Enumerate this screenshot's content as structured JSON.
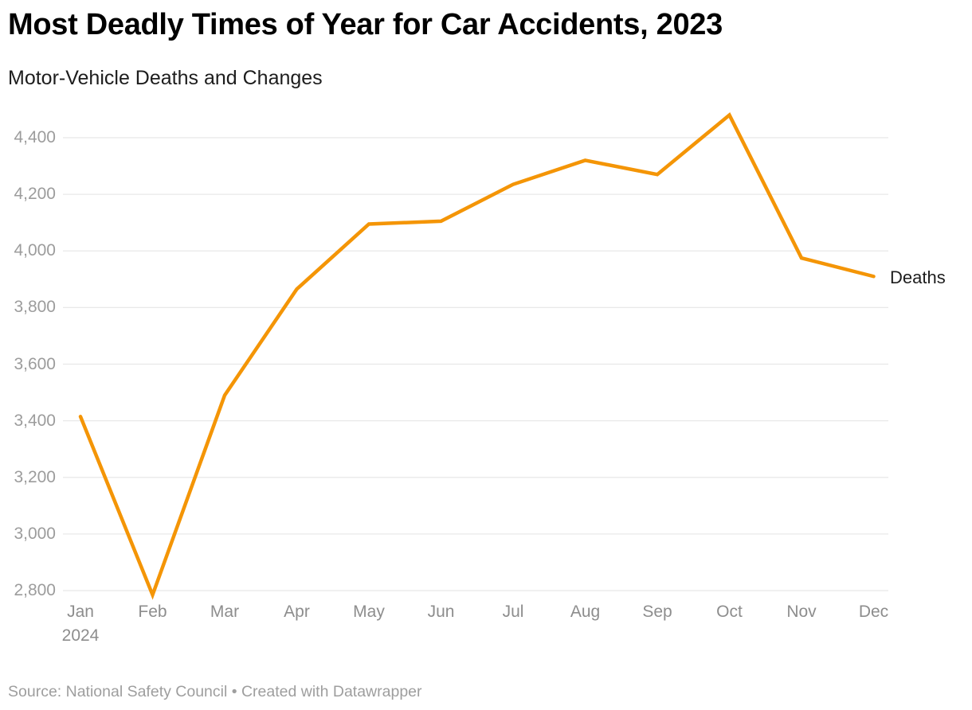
{
  "header": {
    "title": "Most Deadly Times of Year for Car Accidents, 2023",
    "subtitle": "Motor-Vehicle Deaths and Changes"
  },
  "footer": {
    "source": "Source: National Safety Council • Created with Datawrapper"
  },
  "colors": {
    "line": "#F49506",
    "grid": "#e8e8e8",
    "y_label": "#9c9c9c",
    "x_label": "#8d8d8d",
    "title": "#000000",
    "subtitle": "#1d1d1d",
    "series_label": "#1d1d1d",
    "source": "#9e9e9e"
  },
  "chart_data": {
    "type": "line",
    "title": "Most Deadly Times of Year for Car Accidents, 2023",
    "subtitle": "Motor-Vehicle Deaths and Changes",
    "categories": [
      "Jan",
      "Feb",
      "Mar",
      "Apr",
      "May",
      "Jun",
      "Jul",
      "Aug",
      "Sep",
      "Oct",
      "Nov",
      "Dec"
    ],
    "x_first_sublabel": "2024",
    "series": [
      {
        "name": "Deaths",
        "values": [
          3415,
          2785,
          3490,
          3865,
          4095,
          4105,
          4235,
          4320,
          4270,
          4480,
          3975,
          3910
        ]
      }
    ],
    "xlabel": "",
    "ylabel": "",
    "y_ticks": [
      2800,
      3000,
      3200,
      3400,
      3600,
      3800,
      4000,
      4200,
      4400
    ],
    "ylim": [
      2800,
      4400
    ],
    "grid": "horizontal",
    "legend_position": "end-of-line-label-right"
  }
}
